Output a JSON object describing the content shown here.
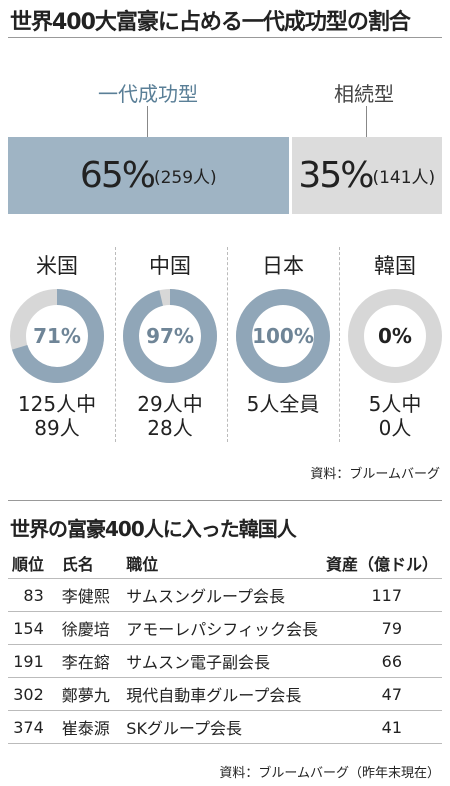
{
  "title": "世界400大富豪に占める一代成功型の割合",
  "colors": {
    "accent": "#9fb4c4",
    "accent_text": "#5a7f97",
    "grey": "#dcdcdc",
    "donut_dark": "#90a6b8",
    "donut_light": "#d7d7d7"
  },
  "chart_data": [
    {
      "type": "bar",
      "orientation": "stacked-horizontal",
      "categories": [
        "一代成功型",
        "相続型"
      ],
      "values": [
        65,
        35
      ],
      "counts": [
        259,
        141
      ],
      "value_labels": [
        "65%",
        "35%"
      ],
      "count_labels": [
        "(259人)",
        "(141人)"
      ]
    },
    {
      "type": "pie",
      "style": "donut",
      "categories": [
        "米国",
        "中国",
        "日本",
        "韓国"
      ],
      "values": [
        71,
        97,
        100,
        0
      ],
      "value_labels": [
        "71%",
        "97%",
        "100%",
        "0%"
      ],
      "captions": [
        [
          "125人中",
          "89人"
        ],
        [
          "29人中",
          "28人"
        ],
        [
          "5人全員",
          ""
        ],
        [
          "5人中",
          "0人"
        ]
      ]
    }
  ],
  "source_1": "資料：ブルームバーグ",
  "table": {
    "title": "世界の富豪400人に入った韓国人",
    "headers": [
      "順位",
      "氏名",
      "職位",
      "資産（億ドル）"
    ],
    "rows": [
      [
        "83",
        "李健熙",
        "サムスングループ会長",
        "117"
      ],
      [
        "154",
        "徐慶培",
        "アモーレパシフィック会長",
        "79"
      ],
      [
        "191",
        "李在鎔",
        "サムスン電子副会長",
        "66"
      ],
      [
        "302",
        "鄭夢九",
        "現代自動車グループ会長",
        "47"
      ],
      [
        "374",
        "崔泰源",
        "SKグループ会長",
        "41"
      ]
    ]
  },
  "source_2": "資料：ブルームバーグ（昨年末現在）"
}
